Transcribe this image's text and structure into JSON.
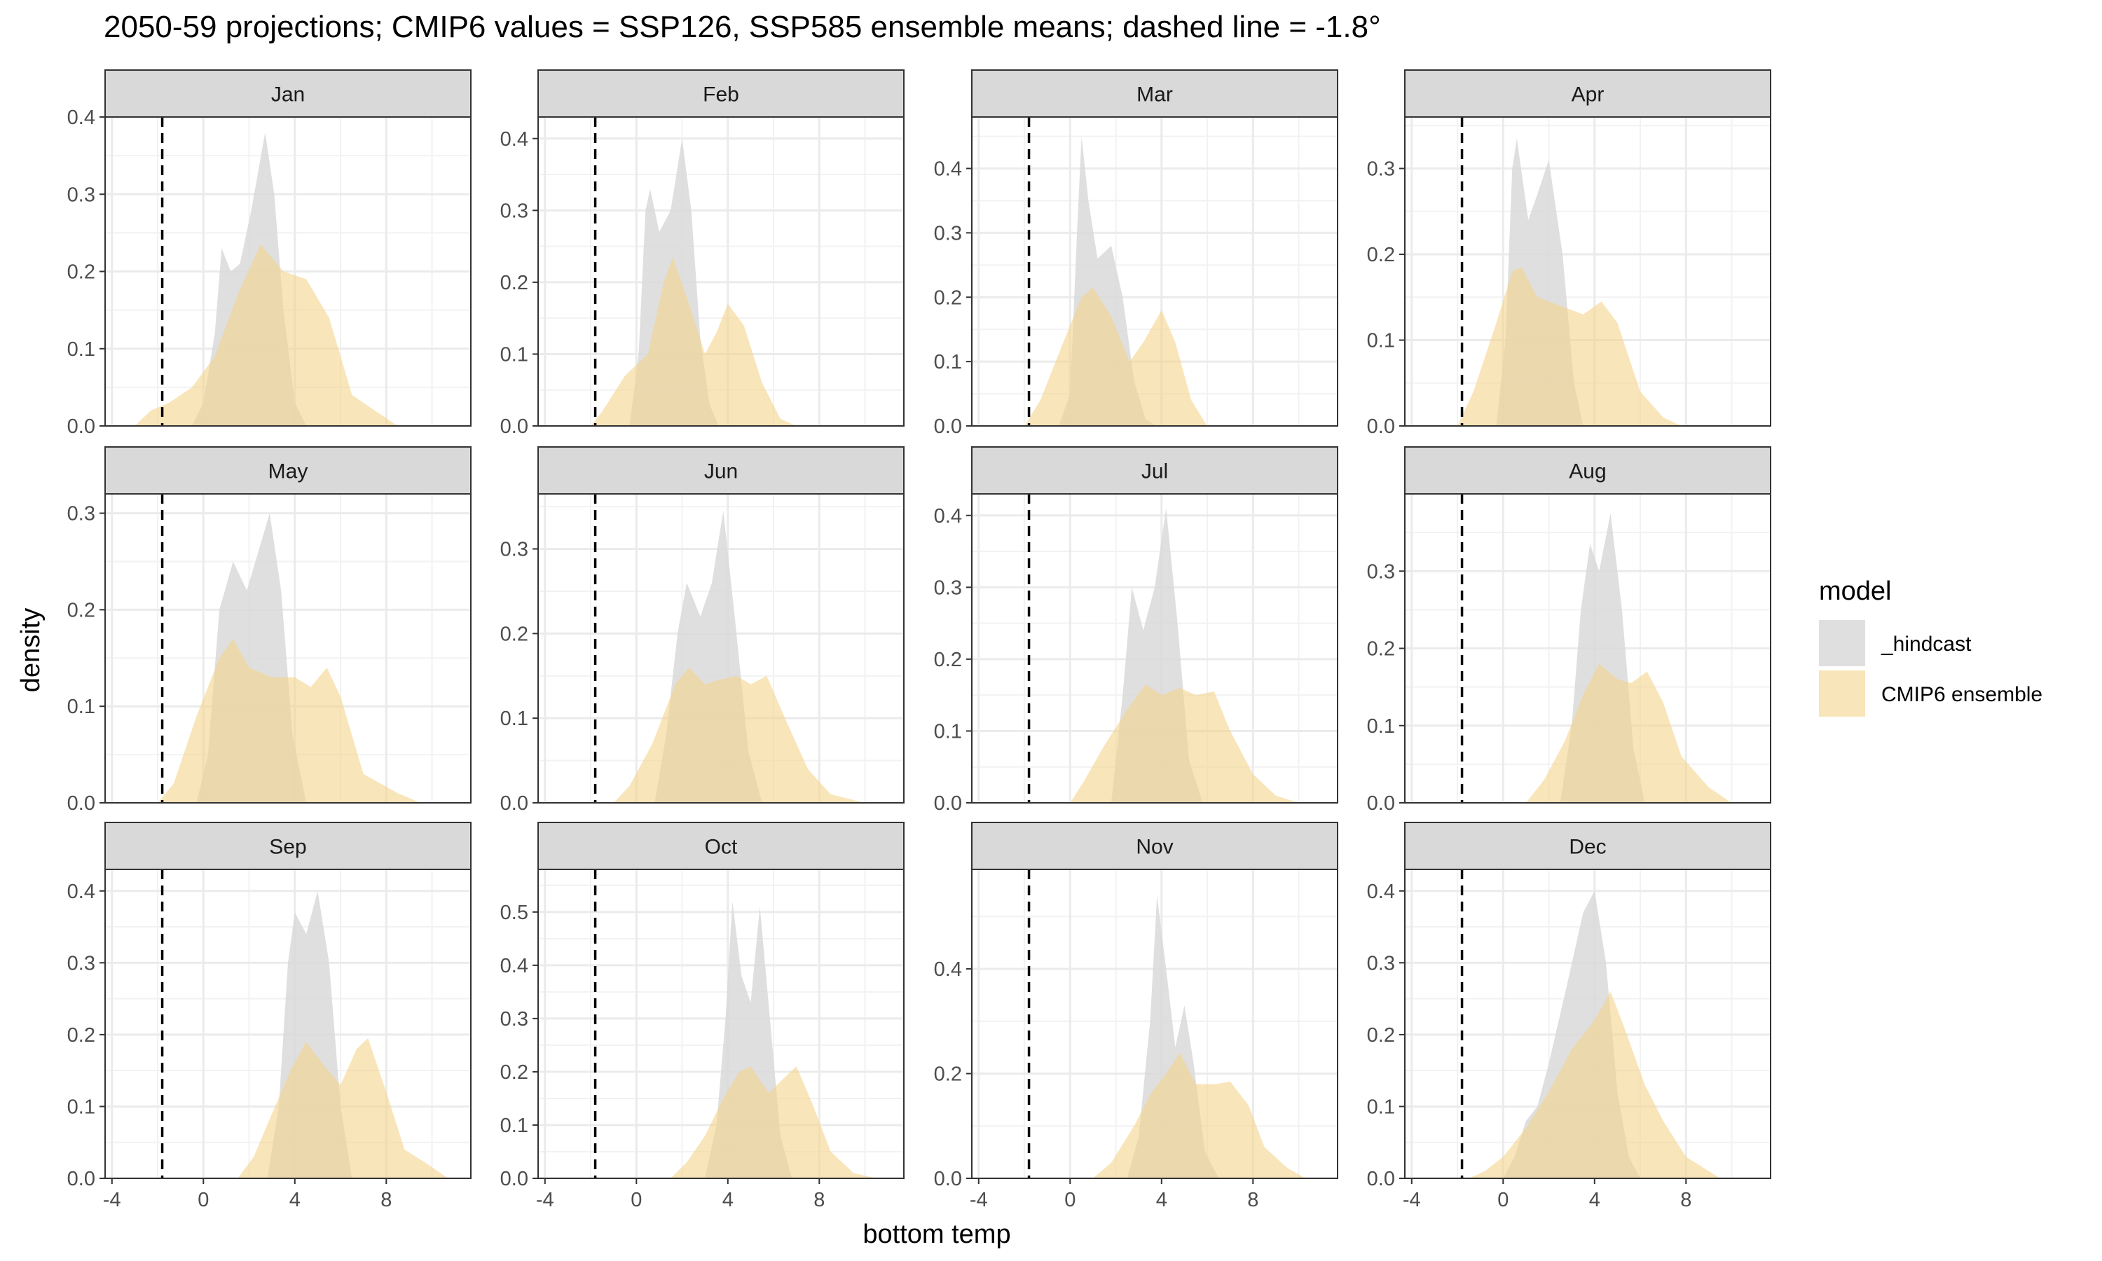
{
  "chart_data": {
    "type": "area",
    "subtype": "density facets",
    "title": "2050-59 projections; CMIP6 values = SSP126, SSP585 ensemble means; dashed line = -1.8°",
    "xlabel": "bottom temp",
    "ylabel": "density",
    "xlim": [
      -4.3,
      11.7
    ],
    "x_ticks": [
      -4,
      0,
      4,
      8
    ],
    "threshold": {
      "x": -1.8,
      "style": "dashed",
      "color": "#000000"
    },
    "legend": {
      "title": "model",
      "position": "right",
      "entries": [
        {
          "name": "_hindcast",
          "color": "#d9d9d9"
        },
        {
          "name": "CMIP6 ensemble",
          "color": "#f5d48c"
        }
      ]
    },
    "colors": {
      "hindcast": "#d9d9d9",
      "cmip6": "#f5d48c",
      "strip": "#d9d9d9",
      "grid": "#ebebeb"
    },
    "grid": true,
    "panels": [
      {
        "month": "Jan",
        "ymax": 0.4,
        "yticks": [
          0.0,
          0.1,
          0.2,
          0.3,
          0.4
        ],
        "hindcast": [
          [
            -0.5,
            0
          ],
          [
            0,
            0.03
          ],
          [
            0.5,
            0.12
          ],
          [
            0.8,
            0.23
          ],
          [
            1.2,
            0.2
          ],
          [
            1.6,
            0.21
          ],
          [
            2.1,
            0.28
          ],
          [
            2.7,
            0.38
          ],
          [
            3.1,
            0.3
          ],
          [
            3.5,
            0.15
          ],
          [
            4,
            0.03
          ],
          [
            4.5,
            0
          ]
        ],
        "cmip6": [
          [
            -3,
            0
          ],
          [
            -2.3,
            0.02
          ],
          [
            -1.5,
            0.03
          ],
          [
            -0.5,
            0.05
          ],
          [
            0.5,
            0.09
          ],
          [
            1.5,
            0.17
          ],
          [
            2.5,
            0.235
          ],
          [
            3.5,
            0.2
          ],
          [
            4.5,
            0.19
          ],
          [
            5.5,
            0.14
          ],
          [
            6.5,
            0.04
          ],
          [
            7.5,
            0.02
          ],
          [
            8.5,
            0
          ]
        ]
      },
      {
        "month": "Feb",
        "ymax": 0.43,
        "yticks": [
          0.0,
          0.1,
          0.2,
          0.3,
          0.4
        ],
        "hindcast": [
          [
            -0.3,
            0
          ],
          [
            0.1,
            0.1
          ],
          [
            0.4,
            0.3
          ],
          [
            0.6,
            0.33
          ],
          [
            1,
            0.27
          ],
          [
            1.5,
            0.3
          ],
          [
            2,
            0.4
          ],
          [
            2.4,
            0.3
          ],
          [
            2.8,
            0.12
          ],
          [
            3.2,
            0.03
          ],
          [
            3.6,
            0
          ]
        ],
        "cmip6": [
          [
            -2,
            0
          ],
          [
            -1.5,
            0.02
          ],
          [
            -0.5,
            0.07
          ],
          [
            0.5,
            0.1
          ],
          [
            1.2,
            0.2
          ],
          [
            1.6,
            0.235
          ],
          [
            2.3,
            0.17
          ],
          [
            3,
            0.1
          ],
          [
            3.5,
            0.13
          ],
          [
            4,
            0.17
          ],
          [
            4.7,
            0.14
          ],
          [
            5.5,
            0.06
          ],
          [
            6.3,
            0.01
          ],
          [
            7,
            0
          ]
        ]
      },
      {
        "month": "Mar",
        "ymax": 0.48,
        "yticks": [
          0.0,
          0.1,
          0.2,
          0.3,
          0.4
        ],
        "hindcast": [
          [
            -0.5,
            0
          ],
          [
            0,
            0.05
          ],
          [
            0.3,
            0.3
          ],
          [
            0.5,
            0.45
          ],
          [
            0.8,
            0.35
          ],
          [
            1.2,
            0.26
          ],
          [
            1.8,
            0.28
          ],
          [
            2.3,
            0.2
          ],
          [
            2.8,
            0.07
          ],
          [
            3.3,
            0.01
          ],
          [
            3.8,
            0
          ]
        ],
        "cmip6": [
          [
            -2,
            0
          ],
          [
            -1.3,
            0.04
          ],
          [
            -0.3,
            0.13
          ],
          [
            0.5,
            0.2
          ],
          [
            1,
            0.215
          ],
          [
            1.8,
            0.17
          ],
          [
            2.6,
            0.1
          ],
          [
            3.2,
            0.13
          ],
          [
            4,
            0.18
          ],
          [
            4.6,
            0.13
          ],
          [
            5.3,
            0.04
          ],
          [
            6,
            0
          ]
        ]
      },
      {
        "month": "Apr",
        "ymax": 0.36,
        "yticks": [
          0.0,
          0.1,
          0.2,
          0.3
        ],
        "hindcast": [
          [
            -0.3,
            0
          ],
          [
            0.1,
            0.1
          ],
          [
            0.4,
            0.3
          ],
          [
            0.6,
            0.335
          ],
          [
            1.1,
            0.24
          ],
          [
            1.5,
            0.27
          ],
          [
            2,
            0.31
          ],
          [
            2.6,
            0.2
          ],
          [
            3.1,
            0.05
          ],
          [
            3.5,
            0
          ]
        ],
        "cmip6": [
          [
            -2,
            0
          ],
          [
            -1.3,
            0.04
          ],
          [
            -0.3,
            0.12
          ],
          [
            0.4,
            0.18
          ],
          [
            0.8,
            0.185
          ],
          [
            1.5,
            0.15
          ],
          [
            2.5,
            0.14
          ],
          [
            3.5,
            0.13
          ],
          [
            4.3,
            0.145
          ],
          [
            5,
            0.12
          ],
          [
            6,
            0.04
          ],
          [
            7,
            0.01
          ],
          [
            7.8,
            0
          ]
        ]
      },
      {
        "month": "May",
        "ymax": 0.32,
        "yticks": [
          0.0,
          0.1,
          0.2,
          0.3
        ],
        "hindcast": [
          [
            -0.3,
            0
          ],
          [
            0.2,
            0.05
          ],
          [
            0.7,
            0.2
          ],
          [
            1.3,
            0.25
          ],
          [
            1.9,
            0.22
          ],
          [
            2.4,
            0.26
          ],
          [
            2.9,
            0.3
          ],
          [
            3.4,
            0.22
          ],
          [
            3.9,
            0.07
          ],
          [
            4.5,
            0
          ]
        ],
        "cmip6": [
          [
            -2,
            0
          ],
          [
            -1.3,
            0.02
          ],
          [
            -0.3,
            0.09
          ],
          [
            0.7,
            0.15
          ],
          [
            1.3,
            0.17
          ],
          [
            2,
            0.14
          ],
          [
            3,
            0.13
          ],
          [
            4,
            0.13
          ],
          [
            4.7,
            0.12
          ],
          [
            5.4,
            0.14
          ],
          [
            6,
            0.11
          ],
          [
            7,
            0.03
          ],
          [
            8.5,
            0.01
          ],
          [
            9.5,
            0
          ]
        ]
      },
      {
        "month": "Jun",
        "ymax": 0.365,
        "yticks": [
          0.0,
          0.1,
          0.2,
          0.3
        ],
        "hindcast": [
          [
            0.8,
            0
          ],
          [
            1.3,
            0.08
          ],
          [
            1.8,
            0.2
          ],
          [
            2.2,
            0.26
          ],
          [
            2.8,
            0.22
          ],
          [
            3.3,
            0.26
          ],
          [
            3.8,
            0.345
          ],
          [
            4.3,
            0.22
          ],
          [
            4.9,
            0.06
          ],
          [
            5.5,
            0
          ]
        ],
        "cmip6": [
          [
            -1,
            0
          ],
          [
            -0.3,
            0.02
          ],
          [
            0.7,
            0.07
          ],
          [
            1.7,
            0.14
          ],
          [
            2.3,
            0.16
          ],
          [
            3,
            0.14
          ],
          [
            3.6,
            0.145
          ],
          [
            4.4,
            0.15
          ],
          [
            5,
            0.14
          ],
          [
            5.7,
            0.15
          ],
          [
            6.5,
            0.1
          ],
          [
            7.5,
            0.04
          ],
          [
            8.5,
            0.01
          ],
          [
            10,
            0
          ]
        ]
      },
      {
        "month": "Jul",
        "ymax": 0.43,
        "yticks": [
          0.0,
          0.1,
          0.2,
          0.3,
          0.4
        ],
        "hindcast": [
          [
            1.8,
            0
          ],
          [
            2.3,
            0.15
          ],
          [
            2.7,
            0.3
          ],
          [
            3.2,
            0.24
          ],
          [
            3.7,
            0.3
          ],
          [
            4.2,
            0.41
          ],
          [
            4.7,
            0.25
          ],
          [
            5.2,
            0.06
          ],
          [
            5.8,
            0
          ]
        ],
        "cmip6": [
          [
            0,
            0
          ],
          [
            0.6,
            0.03
          ],
          [
            1.5,
            0.08
          ],
          [
            2.5,
            0.13
          ],
          [
            3.3,
            0.165
          ],
          [
            4,
            0.15
          ],
          [
            4.8,
            0.16
          ],
          [
            5.5,
            0.15
          ],
          [
            6.3,
            0.155
          ],
          [
            7,
            0.1
          ],
          [
            8,
            0.04
          ],
          [
            9,
            0.01
          ],
          [
            10,
            0
          ]
        ]
      },
      {
        "month": "Aug",
        "ymax": 0.4,
        "yticks": [
          0.0,
          0.1,
          0.2,
          0.3
        ],
        "hindcast": [
          [
            2.5,
            0
          ],
          [
            3,
            0.1
          ],
          [
            3.4,
            0.25
          ],
          [
            3.8,
            0.335
          ],
          [
            4.2,
            0.3
          ],
          [
            4.7,
            0.375
          ],
          [
            5.2,
            0.25
          ],
          [
            5.7,
            0.07
          ],
          [
            6.2,
            0
          ]
        ],
        "cmip6": [
          [
            1,
            0
          ],
          [
            1.8,
            0.03
          ],
          [
            2.7,
            0.08
          ],
          [
            3.5,
            0.14
          ],
          [
            4.2,
            0.18
          ],
          [
            5,
            0.16
          ],
          [
            5.6,
            0.155
          ],
          [
            6.3,
            0.17
          ],
          [
            7,
            0.13
          ],
          [
            7.8,
            0.06
          ],
          [
            9,
            0.02
          ],
          [
            10,
            0
          ]
        ]
      },
      {
        "month": "Sep",
        "ymax": 0.43,
        "yticks": [
          0.0,
          0.1,
          0.2,
          0.3,
          0.4
        ],
        "hindcast": [
          [
            2.8,
            0
          ],
          [
            3.3,
            0.1
          ],
          [
            3.7,
            0.3
          ],
          [
            4,
            0.37
          ],
          [
            4.5,
            0.34
          ],
          [
            5,
            0.4
          ],
          [
            5.5,
            0.3
          ],
          [
            6,
            0.1
          ],
          [
            6.5,
            0
          ]
        ],
        "cmip6": [
          [
            1.5,
            0
          ],
          [
            2.2,
            0.03
          ],
          [
            3,
            0.09
          ],
          [
            3.8,
            0.15
          ],
          [
            4.5,
            0.19
          ],
          [
            5.2,
            0.16
          ],
          [
            6,
            0.13
          ],
          [
            6.7,
            0.18
          ],
          [
            7.2,
            0.195
          ],
          [
            8,
            0.12
          ],
          [
            8.8,
            0.04
          ],
          [
            9.8,
            0.02
          ],
          [
            10.7,
            0
          ]
        ]
      },
      {
        "month": "Oct",
        "ymax": 0.58,
        "yticks": [
          0.0,
          0.1,
          0.2,
          0.3,
          0.4,
          0.5
        ],
        "hindcast": [
          [
            3,
            0
          ],
          [
            3.5,
            0.1
          ],
          [
            3.9,
            0.3
          ],
          [
            4.2,
            0.52
          ],
          [
            4.6,
            0.38
          ],
          [
            5,
            0.33
          ],
          [
            5.4,
            0.51
          ],
          [
            5.8,
            0.32
          ],
          [
            6.3,
            0.08
          ],
          [
            6.8,
            0
          ]
        ],
        "cmip6": [
          [
            1.5,
            0
          ],
          [
            2.2,
            0.03
          ],
          [
            3,
            0.08
          ],
          [
            3.8,
            0.15
          ],
          [
            4.5,
            0.2
          ],
          [
            5,
            0.21
          ],
          [
            5.8,
            0.16
          ],
          [
            6.5,
            0.19
          ],
          [
            7,
            0.21
          ],
          [
            7.7,
            0.14
          ],
          [
            8.5,
            0.05
          ],
          [
            9.5,
            0.01
          ],
          [
            10.5,
            0
          ]
        ]
      },
      {
        "month": "Nov",
        "ymax": 0.59,
        "yticks": [
          0.0,
          0.2,
          0.4
        ],
        "hindcast": [
          [
            2.5,
            0
          ],
          [
            3,
            0.08
          ],
          [
            3.5,
            0.3
          ],
          [
            3.8,
            0.54
          ],
          [
            4.2,
            0.4
          ],
          [
            4.6,
            0.25
          ],
          [
            5,
            0.33
          ],
          [
            5.4,
            0.22
          ],
          [
            5.9,
            0.05
          ],
          [
            6.5,
            0
          ]
        ],
        "cmip6": [
          [
            1,
            0
          ],
          [
            1.8,
            0.03
          ],
          [
            2.8,
            0.1
          ],
          [
            3.5,
            0.16
          ],
          [
            4.2,
            0.2
          ],
          [
            4.8,
            0.24
          ],
          [
            5.5,
            0.18
          ],
          [
            6.4,
            0.18
          ],
          [
            7,
            0.185
          ],
          [
            7.8,
            0.14
          ],
          [
            8.5,
            0.06
          ],
          [
            9.5,
            0.02
          ],
          [
            10.3,
            0
          ]
        ]
      },
      {
        "month": "Dec",
        "ymax": 0.43,
        "yticks": [
          0.0,
          0.1,
          0.2,
          0.3,
          0.4
        ],
        "hindcast": [
          [
            0,
            0
          ],
          [
            0.5,
            0.03
          ],
          [
            1,
            0.08
          ],
          [
            1.5,
            0.1
          ],
          [
            2,
            0.16
          ],
          [
            2.8,
            0.27
          ],
          [
            3.5,
            0.37
          ],
          [
            4,
            0.4
          ],
          [
            4.5,
            0.3
          ],
          [
            5,
            0.12
          ],
          [
            5.5,
            0.03
          ],
          [
            6,
            0
          ]
        ],
        "cmip6": [
          [
            -1.5,
            0
          ],
          [
            -0.8,
            0.01
          ],
          [
            0,
            0.03
          ],
          [
            1,
            0.07
          ],
          [
            2,
            0.12
          ],
          [
            3,
            0.18
          ],
          [
            4,
            0.22
          ],
          [
            4.7,
            0.26
          ],
          [
            5.3,
            0.21
          ],
          [
            6.2,
            0.13
          ],
          [
            7,
            0.08
          ],
          [
            8,
            0.03
          ],
          [
            9.5,
            0
          ]
        ]
      }
    ]
  }
}
